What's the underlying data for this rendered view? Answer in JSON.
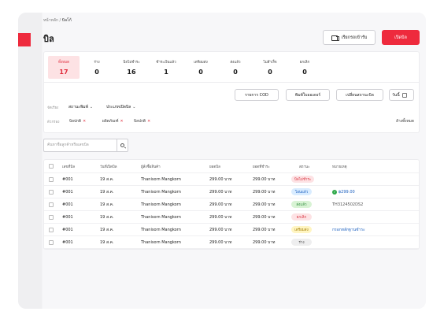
{
  "breadcrumb": {
    "home": "หน้าหลัก",
    "sep": "/",
    "current": "บิลโก้"
  },
  "page_title": "บิล",
  "actions": {
    "receive_label": "เรียกรถเข้ารับ",
    "open_bill_label": "เปิดบิล"
  },
  "colors": {
    "accent": "#ee2a3d",
    "active_tab_bg": "#fde2e4"
  },
  "status_tabs": [
    {
      "label": "ทั้งหมด",
      "count": "17",
      "active": true
    },
    {
      "label": "ร่าง",
      "count": "0"
    },
    {
      "label": "บิลไม่ชำระ",
      "count": "16"
    },
    {
      "label": "ชำระเงินแล้ว",
      "count": "1"
    },
    {
      "label": "เตรียมส่ง",
      "count": "0"
    },
    {
      "label": "ส่งแล้ว",
      "count": "0"
    },
    {
      "label": "ไม่สำเร็จ",
      "count": "0"
    },
    {
      "label": "ยกเลิก",
      "count": "0"
    }
  ],
  "filters": {
    "sort_label": "จัดเรียง",
    "print_status": "สถานะพิมพ์",
    "bill_type": "ประเภทเปิดบิล",
    "cod_button": "รายการ COD",
    "print_order_button": "พิมพ์ใบออเดอร์",
    "change_status_button": "เปลี่ยนสถานะบิล",
    "date_label": "วันนี้",
    "selected_label": "ตัวกรอง",
    "chips": [
      "บิลปกติ",
      "ผลิตภัณฑ์",
      "บิลปกติ"
    ],
    "clear_all": "ล้างทั้งหมด"
  },
  "search": {
    "placeholder": "ค้นหาชื่อลูกค้าหรือเลขบิล"
  },
  "table": {
    "headers": [
      "เลขที่บิล",
      "วันที่เปิดบิล",
      "ผู้สั่งซื้อสินค้า",
      "ยอดบิล",
      "ยอดที่ชำระ",
      "สถานะ",
      "หมายเหตุ"
    ],
    "rows": [
      {
        "id": "#001",
        "date": "19 ส.ค.",
        "customer": "Thanisorn Mangkorn",
        "total": "299.00 บาท",
        "paid": "299.00 บาท",
        "status": "บิลไม่ชำระ",
        "status_bg": "#fde2e4",
        "status_fg": "#d8333f",
        "note": ""
      },
      {
        "id": "#001",
        "date": "19 ส.ค.",
        "customer": "Thanisorn Mangkorn",
        "total": "299.00 บาท",
        "paid": "299.00 บาท",
        "status": "โอนแล้ว",
        "status_bg": "#d9ecff",
        "status_fg": "#1b5fbf",
        "note": "฿299.00",
        "note_kind": "paid"
      },
      {
        "id": "#001",
        "date": "19 ส.ค.",
        "customer": "Thanisorn Mangkorn",
        "total": "299.00 บาท",
        "paid": "299.00 บาท",
        "status": "ส่งแล้ว",
        "status_bg": "#d8f3d4",
        "status_fg": "#2f8a3c",
        "note": "TH3124502DS2",
        "note_kind": "track"
      },
      {
        "id": "#001",
        "date": "19 ส.ค.",
        "customer": "Thanisorn Mangkorn",
        "total": "299.00 บาท",
        "paid": "299.00 บาท",
        "status": "ยกเลิก",
        "status_bg": "#fde2e4",
        "status_fg": "#d8333f",
        "note": ""
      },
      {
        "id": "#001",
        "date": "19 ส.ค.",
        "customer": "Thanisorn Mangkorn",
        "total": "299.00 บาท",
        "paid": "299.00 บาท",
        "status": "เตรียมส่ง",
        "status_bg": "#fff5c2",
        "status_fg": "#a07a00",
        "note": "กรอกหลักฐานชำระ",
        "note_kind": "link"
      },
      {
        "id": "#001",
        "date": "19 ส.ค.",
        "customer": "Thanisorn Mangkorn",
        "total": "299.00 บาท",
        "paid": "299.00 บาท",
        "status": "ร่าง",
        "status_bg": "#eeeeef",
        "status_fg": "#444444",
        "note": ""
      }
    ]
  }
}
